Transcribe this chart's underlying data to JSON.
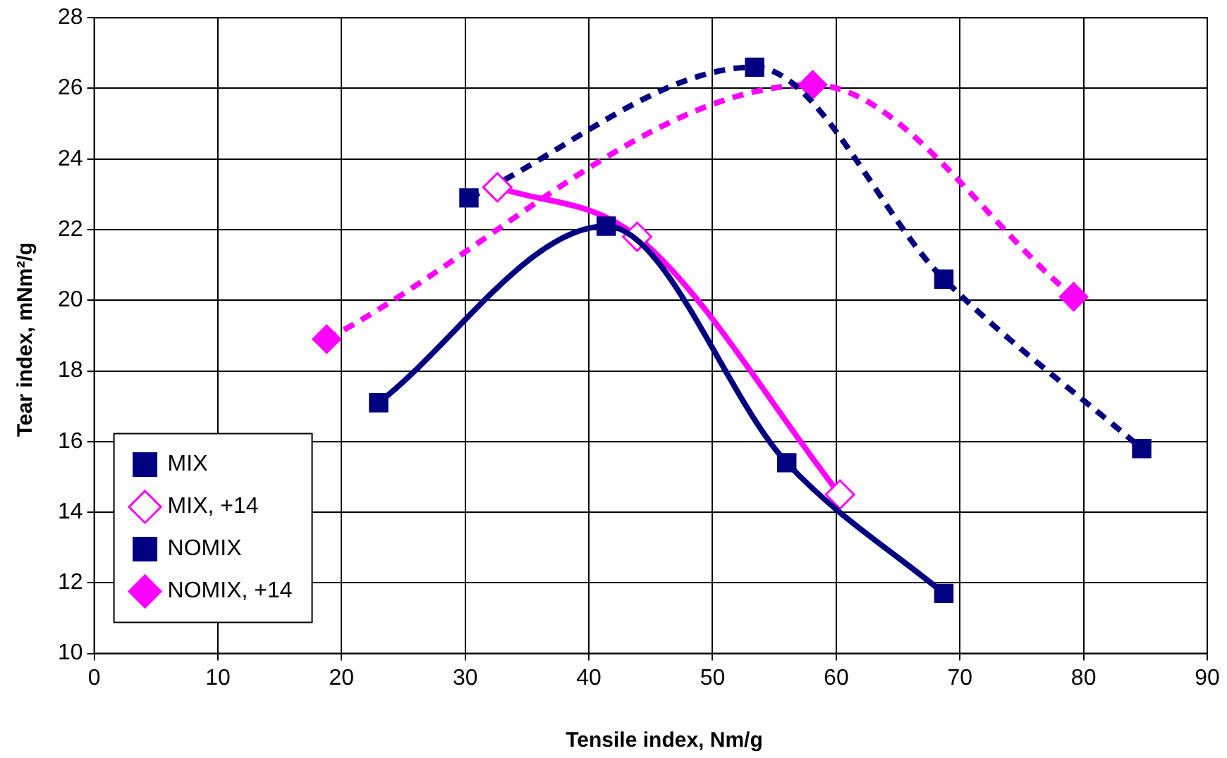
{
  "chart_data": {
    "type": "line",
    "xlabel": "Tensile index, Nm/g",
    "ylabel": "Tear index, mNm²/g",
    "xlim": [
      0,
      90
    ],
    "xticks": [
      0,
      10,
      20,
      30,
      40,
      50,
      60,
      70,
      80,
      90
    ],
    "ylim": [
      10,
      28
    ],
    "yticks": [
      10,
      12,
      14,
      16,
      18,
      20,
      22,
      24,
      26,
      28
    ],
    "grid": true,
    "legend": "bottom left",
    "series": [
      {
        "name": "MIX",
        "color": "#000080",
        "marker": "square",
        "line_style": "solid",
        "x": [
          23.0,
          41.4,
          56.0,
          68.7
        ],
        "values": [
          17.1,
          22.1,
          15.4,
          11.7
        ]
      },
      {
        "name": "MIX, +14",
        "color": "#ff00ff",
        "marker": "diamond",
        "line_style": "solid",
        "x": [
          32.6,
          43.9,
          60.3
        ],
        "values": [
          23.2,
          21.8,
          14.5
        ]
      },
      {
        "name": "NOMIX",
        "color": "#000080",
        "marker": "square",
        "line_style": "dashed",
        "x": [
          30.3,
          53.4,
          68.7,
          84.7
        ],
        "values": [
          22.9,
          26.6,
          20.6,
          15.8
        ]
      },
      {
        "name": "NOMIX, +14",
        "color": "#ff00ff",
        "marker": "diamond",
        "line_style": "dashed",
        "x": [
          18.8,
          58.1,
          79.2
        ],
        "values": [
          18.9,
          26.1,
          20.1
        ]
      }
    ]
  }
}
